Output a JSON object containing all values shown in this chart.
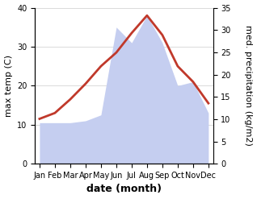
{
  "months": [
    "Jan",
    "Feb",
    "Mar",
    "Apr",
    "May",
    "Jun",
    "Jul",
    "Aug",
    "Sep",
    "Oct",
    "Nov",
    "Dec"
  ],
  "temperature": [
    11.5,
    13.0,
    16.5,
    20.5,
    25.0,
    28.5,
    33.5,
    38.0,
    33.0,
    25.0,
    21.0,
    15.5
  ],
  "precipitation": [
    10.5,
    10.5,
    10.5,
    11.0,
    12.5,
    35.0,
    31.0,
    38.0,
    31.0,
    20.0,
    21.0,
    13.0
  ],
  "temp_color": "#c0392b",
  "precip_color": "#c5cef0",
  "ylim_left": [
    0,
    40
  ],
  "ylim_right": [
    0,
    35
  ],
  "yticks_left": [
    0,
    10,
    20,
    30,
    40
  ],
  "yticks_right": [
    0,
    5,
    10,
    15,
    20,
    25,
    30,
    35
  ],
  "ylabel_left": "max temp (C)",
  "ylabel_right": "med. precipitation (kg/m2)",
  "xlabel": "date (month)",
  "axis_fontsize": 8,
  "tick_fontsize": 7,
  "label_fontsize": 9
}
